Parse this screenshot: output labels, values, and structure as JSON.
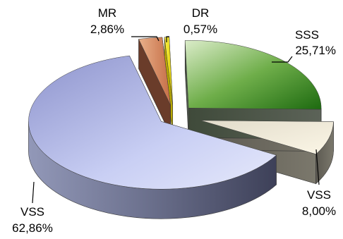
{
  "chart_data": {
    "type": "pie",
    "title": "",
    "legend": "none",
    "slices": [
      {
        "label": "SSS",
        "value": 25.71,
        "display": "25,71%",
        "color": "#2f7d1a"
      },
      {
        "label": "VSS",
        "value": 8.0,
        "display": "8,00%",
        "color": "#f3ecd6"
      },
      {
        "label": "VSS",
        "value": 62.86,
        "display": "62,86%",
        "color": "#b9c0ea"
      },
      {
        "label": "MR",
        "value": 2.86,
        "display": "2,86%",
        "color": "#d88a62"
      },
      {
        "label": "DR",
        "value": 0.57,
        "display": "0,57%",
        "color": "#f5e400"
      }
    ]
  }
}
